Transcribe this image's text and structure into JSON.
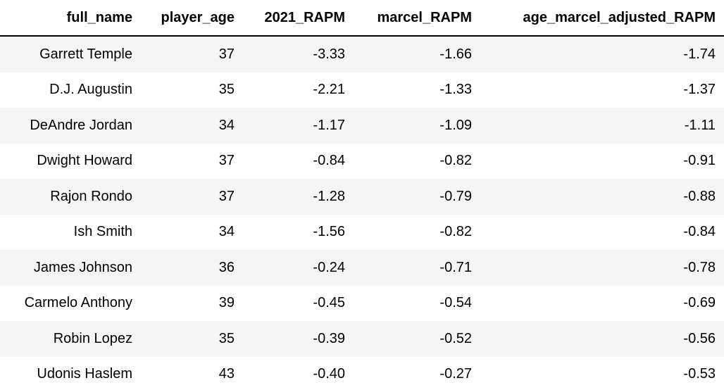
{
  "table": {
    "columns": [
      "full_name",
      "player_age",
      "2021_RAPM",
      "marcel_RAPM",
      "age_marcel_adjusted_RAPM"
    ],
    "rows": [
      [
        "Garrett Temple",
        "37",
        "-3.33",
        "-1.66",
        "-1.74"
      ],
      [
        "D.J. Augustin",
        "35",
        "-2.21",
        "-1.33",
        "-1.37"
      ],
      [
        "DeAndre Jordan",
        "34",
        "-1.17",
        "-1.09",
        "-1.11"
      ],
      [
        "Dwight Howard",
        "37",
        "-0.84",
        "-0.82",
        "-0.91"
      ],
      [
        "Rajon Rondo",
        "37",
        "-1.28",
        "-0.79",
        "-0.88"
      ],
      [
        "Ish Smith",
        "34",
        "-1.56",
        "-0.82",
        "-0.84"
      ],
      [
        "James Johnson",
        "36",
        "-0.24",
        "-0.71",
        "-0.78"
      ],
      [
        "Carmelo Anthony",
        "39",
        "-0.45",
        "-0.54",
        "-0.69"
      ],
      [
        "Robin Lopez",
        "35",
        "-0.39",
        "-0.52",
        "-0.56"
      ],
      [
        "Udonis Haslem",
        "43",
        "-0.40",
        "-0.27",
        "-0.53"
      ]
    ]
  }
}
